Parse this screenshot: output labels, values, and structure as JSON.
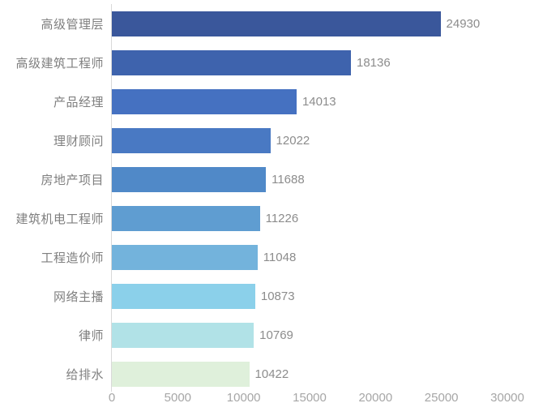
{
  "chart_data": {
    "type": "bar",
    "orientation": "horizontal",
    "title": "",
    "xlabel": "",
    "ylabel": "",
    "grid": false,
    "legend": false,
    "xlim": [
      0,
      30000
    ],
    "x_ticks": [
      "0",
      "5000",
      "10000",
      "15000",
      "20000",
      "25000",
      "30000"
    ],
    "x_tick_values": [
      0,
      5000,
      10000,
      15000,
      20000,
      25000,
      30000
    ],
    "categories": [
      "高级管理层",
      "高级建筑工程师",
      "产品经理",
      "理财顾问",
      "房地产项目",
      "建筑机电工程师",
      "工程造价师",
      "网络主播",
      "律师",
      "给排水"
    ],
    "values": [
      24930,
      18136,
      14013,
      12022,
      11688,
      11226,
      11048,
      10873,
      10769,
      10422
    ],
    "value_labels": [
      "24930",
      "18136",
      "14013",
      "12022",
      "11688",
      "11226",
      "11048",
      "10873",
      "10769",
      "10422"
    ],
    "bar_colors": [
      "#3a579b",
      "#3e63ad",
      "#4571c1",
      "#4979c3",
      "#5089c8",
      "#5f9dd1",
      "#73b3dc",
      "#8bd0ea",
      "#b1e2e7",
      "#dff0db"
    ],
    "colors": {
      "background": "#ffffff",
      "axis_line": "#d9d9d9",
      "category_label": "#7f7f7f",
      "value_label": "#8c8c8c",
      "tick_label": "#a6a6a6"
    }
  }
}
